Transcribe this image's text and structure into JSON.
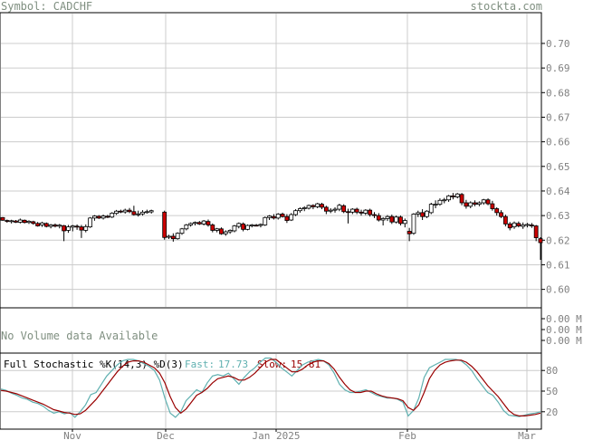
{
  "header": {
    "symbol_label": "Symbol: CADCHF",
    "site": "stockta.com"
  },
  "chart_data": [
    {
      "type": "candlestick",
      "title": "Symbol: CADCHF",
      "y_axis": {
        "ticks": [
          "0.70",
          "0.69",
          "0.68",
          "0.67",
          "0.66",
          "0.65",
          "0.64",
          "0.63",
          "0.62",
          "0.61",
          "0.60"
        ],
        "range": [
          0.5925,
          0.7125
        ]
      },
      "x_axis": {
        "labels": [
          "Nov",
          "Dec",
          "Jan 2025",
          "Feb",
          "Mar"
        ]
      },
      "grid": true,
      "colors": {
        "up": "#ffffff",
        "down": "#cc0000",
        "grid": "#cccccc"
      },
      "candles": [
        {
          "o": 0.6292,
          "h": 0.6294,
          "l": 0.6279,
          "c": 0.6281
        },
        {
          "o": 0.628,
          "h": 0.6284,
          "l": 0.6271,
          "c": 0.6277
        },
        {
          "o": 0.6276,
          "h": 0.6283,
          "l": 0.6268,
          "c": 0.6279
        },
        {
          "o": 0.6278,
          "h": 0.6282,
          "l": 0.627,
          "c": 0.6273
        },
        {
          "o": 0.6273,
          "h": 0.6288,
          "l": 0.6268,
          "c": 0.6282
        },
        {
          "o": 0.6281,
          "h": 0.6284,
          "l": 0.6268,
          "c": 0.6272
        },
        {
          "o": 0.6272,
          "h": 0.6281,
          "l": 0.6266,
          "c": 0.6277
        },
        {
          "o": 0.6275,
          "h": 0.6279,
          "l": 0.6263,
          "c": 0.6268
        },
        {
          "o": 0.6268,
          "h": 0.6274,
          "l": 0.6255,
          "c": 0.6258
        },
        {
          "o": 0.6262,
          "h": 0.6275,
          "l": 0.6254,
          "c": 0.627
        },
        {
          "o": 0.6268,
          "h": 0.6272,
          "l": 0.6252,
          "c": 0.6256
        },
        {
          "o": 0.6256,
          "h": 0.6266,
          "l": 0.6248,
          "c": 0.6262
        },
        {
          "o": 0.6262,
          "h": 0.6268,
          "l": 0.6252,
          "c": 0.6257
        },
        {
          "o": 0.6257,
          "h": 0.6266,
          "l": 0.6248,
          "c": 0.6261
        },
        {
          "o": 0.6259,
          "h": 0.6262,
          "l": 0.6196,
          "c": 0.6238
        },
        {
          "o": 0.624,
          "h": 0.6262,
          "l": 0.623,
          "c": 0.6254
        },
        {
          "o": 0.6253,
          "h": 0.6262,
          "l": 0.6236,
          "c": 0.6258
        },
        {
          "o": 0.6257,
          "h": 0.6264,
          "l": 0.6242,
          "c": 0.6254
        },
        {
          "o": 0.6254,
          "h": 0.6262,
          "l": 0.6209,
          "c": 0.6241
        },
        {
          "o": 0.624,
          "h": 0.6264,
          "l": 0.6232,
          "c": 0.6255
        },
        {
          "o": 0.6254,
          "h": 0.6294,
          "l": 0.625,
          "c": 0.629
        },
        {
          "o": 0.629,
          "h": 0.6302,
          "l": 0.6279,
          "c": 0.6298
        },
        {
          "o": 0.6297,
          "h": 0.6302,
          "l": 0.6286,
          "c": 0.629
        },
        {
          "o": 0.629,
          "h": 0.6304,
          "l": 0.6284,
          "c": 0.6298
        },
        {
          "o": 0.6297,
          "h": 0.6303,
          "l": 0.629,
          "c": 0.6294
        },
        {
          "o": 0.6294,
          "h": 0.6314,
          "l": 0.629,
          "c": 0.631
        },
        {
          "o": 0.6309,
          "h": 0.6323,
          "l": 0.6303,
          "c": 0.6318
        },
        {
          "o": 0.6318,
          "h": 0.6324,
          "l": 0.631,
          "c": 0.6315
        },
        {
          "o": 0.6315,
          "h": 0.6328,
          "l": 0.6308,
          "c": 0.6322
        },
        {
          "o": 0.6322,
          "h": 0.6331,
          "l": 0.631,
          "c": 0.6316
        },
        {
          "o": 0.6316,
          "h": 0.634,
          "l": 0.63,
          "c": 0.6304
        },
        {
          "o": 0.6304,
          "h": 0.632,
          "l": 0.6296,
          "c": 0.6307
        },
        {
          "o": 0.6307,
          "h": 0.6322,
          "l": 0.63,
          "c": 0.6314
        },
        {
          "o": 0.6314,
          "h": 0.6324,
          "l": 0.6308,
          "c": 0.6316
        },
        {
          "o": 0.6315,
          "h": 0.6324,
          "l": 0.6308,
          "c": 0.632
        },
        {
          "o": 0.6314,
          "h": 0.632,
          "l": 0.6202,
          "c": 0.6211
        },
        {
          "o": 0.6212,
          "h": 0.6222,
          "l": 0.6205,
          "c": 0.6216
        },
        {
          "o": 0.6216,
          "h": 0.6228,
          "l": 0.6194,
          "c": 0.6206
        },
        {
          "o": 0.6206,
          "h": 0.6232,
          "l": 0.6202,
          "c": 0.6228
        },
        {
          "o": 0.6228,
          "h": 0.625,
          "l": 0.6222,
          "c": 0.6246
        },
        {
          "o": 0.6246,
          "h": 0.6266,
          "l": 0.624,
          "c": 0.6262
        },
        {
          "o": 0.6262,
          "h": 0.6272,
          "l": 0.6255,
          "c": 0.6268
        },
        {
          "o": 0.6268,
          "h": 0.6276,
          "l": 0.626,
          "c": 0.6272
        },
        {
          "o": 0.6272,
          "h": 0.6278,
          "l": 0.6262,
          "c": 0.6266
        },
        {
          "o": 0.6266,
          "h": 0.6282,
          "l": 0.626,
          "c": 0.6278
        },
        {
          "o": 0.6276,
          "h": 0.6284,
          "l": 0.6255,
          "c": 0.6262
        },
        {
          "o": 0.6262,
          "h": 0.6268,
          "l": 0.6232,
          "c": 0.624
        },
        {
          "o": 0.624,
          "h": 0.625,
          "l": 0.6232,
          "c": 0.6246
        },
        {
          "o": 0.6246,
          "h": 0.6252,
          "l": 0.6222,
          "c": 0.6226
        },
        {
          "o": 0.6226,
          "h": 0.624,
          "l": 0.6218,
          "c": 0.6234
        },
        {
          "o": 0.6234,
          "h": 0.6244,
          "l": 0.6226,
          "c": 0.624
        },
        {
          "o": 0.6238,
          "h": 0.6262,
          "l": 0.6232,
          "c": 0.6258
        },
        {
          "o": 0.6256,
          "h": 0.6272,
          "l": 0.6248,
          "c": 0.6268
        },
        {
          "o": 0.6266,
          "h": 0.6272,
          "l": 0.6236,
          "c": 0.6244
        },
        {
          "o": 0.6244,
          "h": 0.6264,
          "l": 0.624,
          "c": 0.626
        },
        {
          "o": 0.6258,
          "h": 0.6266,
          "l": 0.6252,
          "c": 0.6262
        },
        {
          "o": 0.6261,
          "h": 0.6266,
          "l": 0.6256,
          "c": 0.626
        },
        {
          "o": 0.626,
          "h": 0.6268,
          "l": 0.6252,
          "c": 0.6264
        },
        {
          "o": 0.6262,
          "h": 0.6296,
          "l": 0.6258,
          "c": 0.6292
        },
        {
          "o": 0.6292,
          "h": 0.6302,
          "l": 0.6282,
          "c": 0.6298
        },
        {
          "o": 0.6296,
          "h": 0.6306,
          "l": 0.6284,
          "c": 0.629
        },
        {
          "o": 0.629,
          "h": 0.631,
          "l": 0.6284,
          "c": 0.6306
        },
        {
          "o": 0.6306,
          "h": 0.6312,
          "l": 0.6292,
          "c": 0.6296
        },
        {
          "o": 0.6296,
          "h": 0.6306,
          "l": 0.627,
          "c": 0.628
        },
        {
          "o": 0.6282,
          "h": 0.631,
          "l": 0.6278,
          "c": 0.6304
        },
        {
          "o": 0.6304,
          "h": 0.6326,
          "l": 0.6298,
          "c": 0.632
        },
        {
          "o": 0.632,
          "h": 0.6334,
          "l": 0.6312,
          "c": 0.6328
        },
        {
          "o": 0.6328,
          "h": 0.6338,
          "l": 0.6318,
          "c": 0.6332
        },
        {
          "o": 0.633,
          "h": 0.6345,
          "l": 0.6325,
          "c": 0.6341
        },
        {
          "o": 0.6341,
          "h": 0.6346,
          "l": 0.6326,
          "c": 0.6336
        },
        {
          "o": 0.6336,
          "h": 0.6352,
          "l": 0.633,
          "c": 0.6348
        },
        {
          "o": 0.6346,
          "h": 0.6352,
          "l": 0.6326,
          "c": 0.6334
        },
        {
          "o": 0.6334,
          "h": 0.634,
          "l": 0.6306,
          "c": 0.6318
        },
        {
          "o": 0.6318,
          "h": 0.633,
          "l": 0.631,
          "c": 0.6322
        },
        {
          "o": 0.6322,
          "h": 0.6334,
          "l": 0.6312,
          "c": 0.6326
        },
        {
          "o": 0.6326,
          "h": 0.6348,
          "l": 0.6318,
          "c": 0.6342
        },
        {
          "o": 0.634,
          "h": 0.6346,
          "l": 0.631,
          "c": 0.6316
        },
        {
          "o": 0.6316,
          "h": 0.6328,
          "l": 0.6268,
          "c": 0.6314
        },
        {
          "o": 0.6314,
          "h": 0.633,
          "l": 0.6306,
          "c": 0.6326
        },
        {
          "o": 0.6326,
          "h": 0.6332,
          "l": 0.6306,
          "c": 0.6314
        },
        {
          "o": 0.6314,
          "h": 0.6324,
          "l": 0.63,
          "c": 0.631
        },
        {
          "o": 0.631,
          "h": 0.6326,
          "l": 0.6302,
          "c": 0.6322
        },
        {
          "o": 0.6322,
          "h": 0.6328,
          "l": 0.6296,
          "c": 0.6304
        },
        {
          "o": 0.6304,
          "h": 0.6314,
          "l": 0.629,
          "c": 0.63
        },
        {
          "o": 0.63,
          "h": 0.631,
          "l": 0.6276,
          "c": 0.6282
        },
        {
          "o": 0.6282,
          "h": 0.6294,
          "l": 0.626,
          "c": 0.6288
        },
        {
          "o": 0.6288,
          "h": 0.6302,
          "l": 0.6278,
          "c": 0.6296
        },
        {
          "o": 0.6296,
          "h": 0.6304,
          "l": 0.6266,
          "c": 0.6274
        },
        {
          "o": 0.6274,
          "h": 0.63,
          "l": 0.6268,
          "c": 0.6294
        },
        {
          "o": 0.6294,
          "h": 0.63,
          "l": 0.626,
          "c": 0.6268
        },
        {
          "o": 0.6268,
          "h": 0.6288,
          "l": 0.6252,
          "c": 0.628
        },
        {
          "o": 0.6236,
          "h": 0.625,
          "l": 0.6196,
          "c": 0.6226
        },
        {
          "o": 0.6228,
          "h": 0.631,
          "l": 0.6222,
          "c": 0.6306
        },
        {
          "o": 0.6306,
          "h": 0.632,
          "l": 0.6294,
          "c": 0.6312
        },
        {
          "o": 0.6312,
          "h": 0.6326,
          "l": 0.6282,
          "c": 0.6296
        },
        {
          "o": 0.6296,
          "h": 0.6322,
          "l": 0.629,
          "c": 0.6318
        },
        {
          "o": 0.6312,
          "h": 0.6352,
          "l": 0.6306,
          "c": 0.6346
        },
        {
          "o": 0.6344,
          "h": 0.6362,
          "l": 0.633,
          "c": 0.6346
        },
        {
          "o": 0.6346,
          "h": 0.637,
          "l": 0.634,
          "c": 0.6362
        },
        {
          "o": 0.6362,
          "h": 0.6372,
          "l": 0.635,
          "c": 0.6364
        },
        {
          "o": 0.6364,
          "h": 0.6384,
          "l": 0.6356,
          "c": 0.638
        },
        {
          "o": 0.638,
          "h": 0.6392,
          "l": 0.6366,
          "c": 0.6376
        },
        {
          "o": 0.6376,
          "h": 0.6392,
          "l": 0.637,
          "c": 0.6388
        },
        {
          "o": 0.6386,
          "h": 0.6392,
          "l": 0.6342,
          "c": 0.6352
        },
        {
          "o": 0.6352,
          "h": 0.6364,
          "l": 0.6328,
          "c": 0.6338
        },
        {
          "o": 0.6338,
          "h": 0.6358,
          "l": 0.633,
          "c": 0.6352
        },
        {
          "o": 0.6352,
          "h": 0.6362,
          "l": 0.6338,
          "c": 0.6346
        },
        {
          "o": 0.6346,
          "h": 0.6358,
          "l": 0.6338,
          "c": 0.6352
        },
        {
          "o": 0.6352,
          "h": 0.6368,
          "l": 0.6344,
          "c": 0.6364
        },
        {
          "o": 0.6364,
          "h": 0.637,
          "l": 0.6342,
          "c": 0.6348
        },
        {
          "o": 0.6348,
          "h": 0.636,
          "l": 0.632,
          "c": 0.6328
        },
        {
          "o": 0.6328,
          "h": 0.6334,
          "l": 0.63,
          "c": 0.6312
        },
        {
          "o": 0.6312,
          "h": 0.6322,
          "l": 0.629,
          "c": 0.6296
        },
        {
          "o": 0.6296,
          "h": 0.6304,
          "l": 0.6256,
          "c": 0.6266
        },
        {
          "o": 0.6266,
          "h": 0.6274,
          "l": 0.624,
          "c": 0.625
        },
        {
          "o": 0.6254,
          "h": 0.6276,
          "l": 0.6246,
          "c": 0.627
        },
        {
          "o": 0.6268,
          "h": 0.6276,
          "l": 0.6252,
          "c": 0.6258
        },
        {
          "o": 0.6256,
          "h": 0.6272,
          "l": 0.6246,
          "c": 0.6262
        },
        {
          "o": 0.626,
          "h": 0.627,
          "l": 0.6252,
          "c": 0.6264
        },
        {
          "o": 0.6262,
          "h": 0.627,
          "l": 0.625,
          "c": 0.6258
        },
        {
          "o": 0.6258,
          "h": 0.6262,
          "l": 0.6196,
          "c": 0.621
        },
        {
          "o": 0.6206,
          "h": 0.6212,
          "l": 0.612,
          "c": 0.619
        }
      ]
    },
    {
      "type": "area",
      "title": "No Volume data Available",
      "y_axis": {
        "ticks": [
          "0.00 M",
          "0.00 M",
          "0.00 M"
        ]
      },
      "series": []
    },
    {
      "type": "line",
      "title": "Full Stochastic %K(14,3) %D(3)",
      "ylim": [
        0,
        100
      ],
      "y_axis": {
        "ticks": [
          "80",
          "50",
          "20"
        ]
      },
      "x_axis": {
        "labels": [
          "Nov",
          "Dec",
          "Jan 2025",
          "Feb",
          "Mar"
        ]
      },
      "legend": {
        "fast_label": "Fast:",
        "fast_value": "17.73",
        "slow_label": "Slow:",
        "slow_value": "15.81"
      },
      "colors": {
        "fast": "#5fb0b0",
        "slow": "#990000"
      },
      "series": [
        {
          "name": "Fast",
          "values": [
            53,
            51,
            47,
            44,
            40,
            38,
            34,
            32,
            28,
            22,
            18,
            20,
            17,
            19,
            12,
            20,
            30,
            45,
            48,
            60,
            72,
            80,
            88,
            94,
            96,
            96,
            94,
            90,
            86,
            80,
            66,
            40,
            18,
            12,
            20,
            36,
            44,
            52,
            48,
            62,
            72,
            74,
            72,
            76,
            68,
            60,
            70,
            78,
            84,
            92,
            98,
            98,
            92,
            84,
            78,
            72,
            80,
            88,
            92,
            94,
            96,
            94,
            88,
            76,
            60,
            52,
            48,
            48,
            50,
            52,
            48,
            44,
            42,
            40,
            40,
            38,
            34,
            14,
            22,
            40,
            70,
            84,
            88,
            92,
            96,
            96,
            96,
            94,
            88,
            80,
            68,
            58,
            48,
            44,
            34,
            22,
            15,
            14,
            13,
            15,
            17,
            18,
            20
          ]
        },
        {
          "name": "Slow",
          "values": [
            51,
            50,
            48,
            46,
            43,
            40,
            37,
            34,
            31,
            27,
            23,
            21,
            19,
            18,
            16,
            17,
            22,
            30,
            38,
            48,
            58,
            68,
            78,
            86,
            92,
            94,
            94,
            92,
            88,
            84,
            76,
            62,
            42,
            26,
            18,
            24,
            34,
            44,
            48,
            54,
            62,
            68,
            70,
            72,
            70,
            66,
            66,
            70,
            76,
            84,
            92,
            96,
            96,
            90,
            84,
            78,
            78,
            82,
            88,
            92,
            94,
            94,
            90,
            82,
            70,
            60,
            52,
            48,
            48,
            50,
            50,
            46,
            43,
            41,
            40,
            39,
            36,
            26,
            22,
            30,
            48,
            68,
            80,
            88,
            92,
            94,
            95,
            95,
            92,
            86,
            78,
            68,
            58,
            50,
            42,
            32,
            22,
            16,
            14,
            14,
            15,
            16,
            18
          ]
        }
      ]
    }
  ]
}
